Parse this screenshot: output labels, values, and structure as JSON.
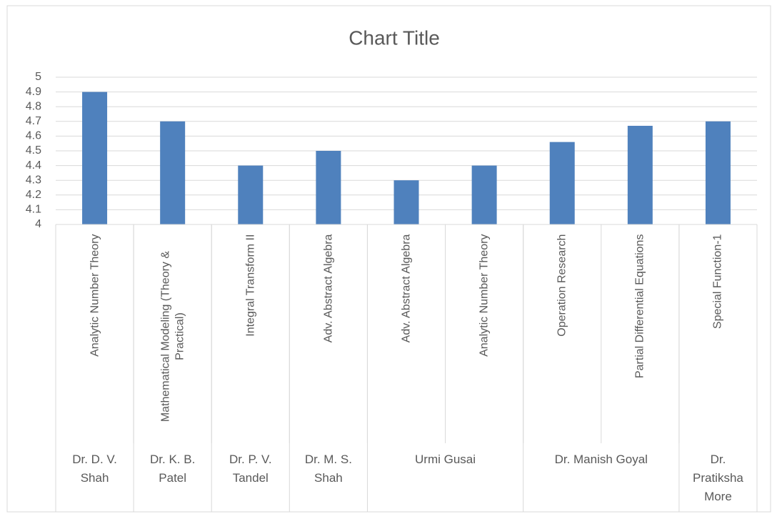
{
  "chart_data": {
    "type": "bar",
    "title": "Chart Title",
    "categories": [
      "Analytic Number Theory",
      "Mathematical Modeling (Theory & Practical)",
      "Integral Transform II",
      "Adv. Abstract Algebra",
      "Adv. Abstract Algebra",
      "Analytic Number Theory",
      "Operation Research",
      "Partial Differential Equations",
      "Special Function-1"
    ],
    "groups": [
      {
        "name": "Dr. D. V. Shah",
        "count": 1
      },
      {
        "name": "Dr. K. B. Patel",
        "count": 1
      },
      {
        "name": "Dr. P. V. Tandel",
        "count": 1
      },
      {
        "name": "Dr. M. S. Shah",
        "count": 1
      },
      {
        "name": "Urmi Gusai",
        "count": 2
      },
      {
        "name": "Dr. Manish Goyal",
        "count": 2
      },
      {
        "name": "Dr. Pratiksha More",
        "count": 1
      }
    ],
    "values": [
      4.9,
      4.7,
      4.4,
      4.5,
      4.3,
      4.4,
      4.56,
      4.67,
      4.7
    ],
    "color": "#4f81bd",
    "ylim": [
      4,
      5
    ],
    "yticks": [
      4,
      4.1,
      4.2,
      4.3,
      4.4,
      4.5,
      4.6,
      4.7,
      4.8,
      4.9,
      5
    ],
    "grid": true
  }
}
